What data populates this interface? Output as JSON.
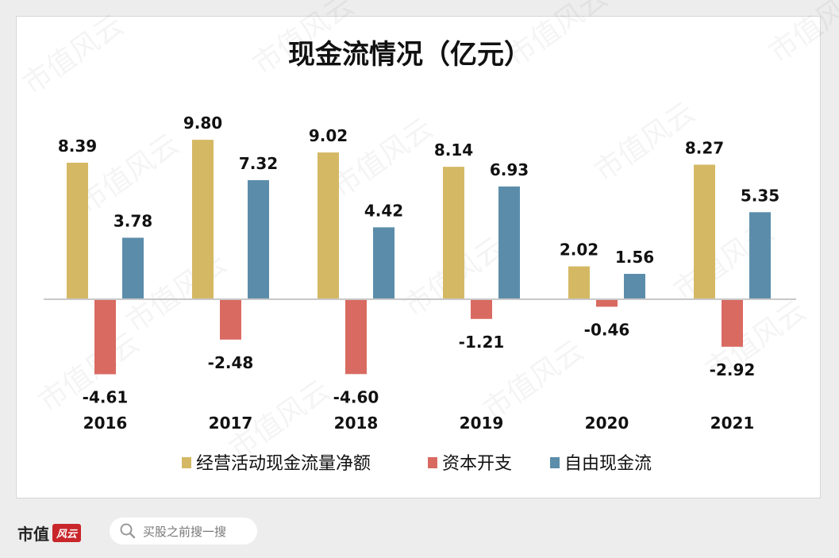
{
  "chart_data": {
    "type": "bar",
    "title": "现金流情况（亿元）",
    "categories": [
      "2016",
      "2017",
      "2018",
      "2019",
      "2020",
      "2021"
    ],
    "series": [
      {
        "name": "经营活动现金流量净额",
        "color": "#d4b864",
        "values": [
          8.39,
          9.8,
          9.02,
          8.14,
          2.02,
          8.27
        ]
      },
      {
        "name": "资本开支",
        "color": "#d96a62",
        "values": [
          -4.61,
          -2.48,
          -4.6,
          -1.21,
          -0.46,
          -2.92
        ]
      },
      {
        "name": "自由现金流",
        "color": "#5b8daa",
        "values": [
          3.78,
          7.32,
          4.42,
          6.93,
          1.56,
          5.35
        ]
      }
    ],
    "ylim": [
      -5.8,
      11.0
    ],
    "grid": false,
    "legend_position": "bottom"
  },
  "footer": {
    "logo_text": "市值",
    "logo_badge": "风云",
    "search_placeholder": "买股之前搜一搜"
  },
  "watermark": "市值风云"
}
